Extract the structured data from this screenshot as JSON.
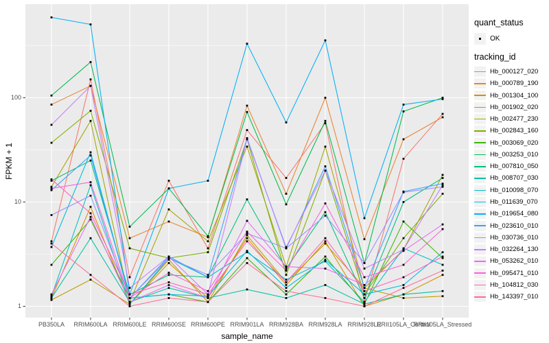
{
  "chart_data": {
    "type": "line",
    "title": "",
    "xlabel": "sample_name",
    "ylabel": "FPKM + 1",
    "y_scale": "log10",
    "y_ticks": [
      1,
      10,
      100
    ],
    "y_minor_ticks": [
      3.1623,
      31.623,
      316.23
    ],
    "ylim": [
      0.82,
      830
    ],
    "grid": "on",
    "panel_bg": "#EBEBEB",
    "grid_color": "#FFFFFF",
    "point_color": "#000000",
    "tick_label_color": "#4D4D4D",
    "legend_key_bg": "#F2F2F2",
    "legend_position": "right",
    "categories": [
      "PB350LA",
      "RRIM600LA",
      "RRIM600LE",
      "RRIM600SE",
      "RRIM600PE",
      "RRIM901LA",
      "RRIM928BA",
      "RRIM928LA",
      "RRIM928LE",
      "RRII105LA_Control",
      "RRII105LA_Stressed"
    ],
    "legend": {
      "quant_status_title": "quant_status",
      "quant_status_items": [
        "OK"
      ],
      "tracking_title": "tracking_id"
    },
    "series": [
      {
        "name": "Hb_000127_020",
        "color": "#F8766D",
        "values": [
          4.2,
          150,
          1.9,
          16,
          3.6,
          49,
          17,
          57,
          1.1,
          26,
          70
        ]
      },
      {
        "name": "Hb_000789_190",
        "color": "#EA8331",
        "values": [
          86,
          130,
          4.5,
          6.5,
          4.6,
          84,
          12,
          100,
          4.4,
          40,
          65
        ]
      },
      {
        "name": "Hb_001304_100",
        "color": "#D89000",
        "values": [
          1.2,
          9,
          1.05,
          2.6,
          1.2,
          4.5,
          1.6,
          4.2,
          1.0,
          1.3,
          2.0
        ]
      },
      {
        "name": "Hb_001902_020",
        "color": "#C09B00",
        "values": [
          1.15,
          1.8,
          1.05,
          2.8,
          1.1,
          4.8,
          1.7,
          4.0,
          1.5,
          1.2,
          1.25
        ]
      },
      {
        "name": "Hb_002477_230",
        "color": "#A3A500",
        "values": [
          14,
          60,
          1.1,
          8.5,
          4.2,
          34,
          2.4,
          34,
          1.5,
          3.5,
          18.2
        ]
      },
      {
        "name": "Hb_002843_160",
        "color": "#7CAE00",
        "values": [
          37,
          75,
          3.6,
          2.9,
          3.3,
          40,
          2.0,
          20,
          1.3,
          4.5,
          12
        ]
      },
      {
        "name": "Hb_003069_020",
        "color": "#39B600",
        "values": [
          2.5,
          6.8,
          1.2,
          1.3,
          1.1,
          2.9,
          1.3,
          3.0,
          1.05,
          6.5,
          2.9
        ]
      },
      {
        "name": "Hb_003253_010",
        "color": "#00BB4E",
        "values": [
          105,
          220,
          5.8,
          13.5,
          4.7,
          73,
          9.5,
          60,
          2.6,
          74,
          100
        ]
      },
      {
        "name": "Hb_007810_050",
        "color": "#00BF7D",
        "values": [
          16,
          25,
          1.3,
          2.0,
          1.9,
          10.6,
          2.3,
          8.0,
          1.2,
          10,
          17
        ]
      },
      {
        "name": "Hb_008707_030",
        "color": "#00C1A3",
        "values": [
          1.2,
          4.5,
          1.1,
          1.5,
          1.2,
          1.45,
          1.2,
          1.6,
          1.05,
          1.3,
          1.4
        ]
      },
      {
        "name": "Hb_010098_070",
        "color": "#00BFC4",
        "values": [
          1.25,
          14.5,
          1.05,
          2.9,
          1.9,
          3.3,
          1.8,
          2.7,
          1.1,
          3.6,
          2.5
        ]
      },
      {
        "name": "Hb_011639_070",
        "color": "#00BAE0",
        "values": [
          3.7,
          30,
          1.2,
          1.3,
          1.25,
          3.4,
          1.5,
          2.8,
          1.3,
          1.6,
          3.3
        ]
      },
      {
        "name": "Hb_019654_080",
        "color": "#00B0F6",
        "values": [
          590,
          505,
          1.3,
          13.5,
          16,
          330,
          58,
          355,
          7.0,
          86,
          97
        ]
      },
      {
        "name": "Hb_023610_010",
        "color": "#35A2FF",
        "values": [
          13,
          28,
          1.2,
          3.0,
          1.9,
          41,
          3.6,
          22,
          1.5,
          12.6,
          15
        ]
      },
      {
        "name": "Hb_030736_010",
        "color": "#9590FF",
        "values": [
          7.5,
          11.5,
          1.2,
          2.9,
          2.0,
          5.0,
          3.6,
          7.4,
          2.6,
          12.4,
          14
        ]
      },
      {
        "name": "Hb_032264_130",
        "color": "#C77CFF",
        "values": [
          55,
          130,
          1.5,
          3.0,
          1.3,
          40,
          3.7,
          20,
          2.3,
          3.5,
          14.5
        ]
      },
      {
        "name": "Hb_053262_010",
        "color": "#E76BF3",
        "values": [
          1.3,
          7.2,
          1.1,
          1.6,
          1.2,
          6.6,
          2.4,
          2.3,
          1.6,
          3.4,
          6.1
        ]
      },
      {
        "name": "Hb_095471_010",
        "color": "#FA62DB",
        "values": [
          13.5,
          15.5,
          1.2,
          2.1,
          1.4,
          5.2,
          2.2,
          9.7,
          1.9,
          2.5,
          5.5
        ]
      },
      {
        "name": "Hb_104812_030",
        "color": "#FF62BC",
        "values": [
          16.5,
          7.8,
          1.3,
          1.7,
          1.3,
          4.2,
          1.7,
          4.5,
          1.4,
          1.9,
          3.0
        ]
      },
      {
        "name": "Hb_143397_010",
        "color": "#FF6A98",
        "values": [
          4.0,
          2.0,
          1.0,
          1.2,
          1.1,
          2.6,
          1.4,
          1.2,
          1.0,
          1.5,
          2.2
        ]
      }
    ]
  }
}
